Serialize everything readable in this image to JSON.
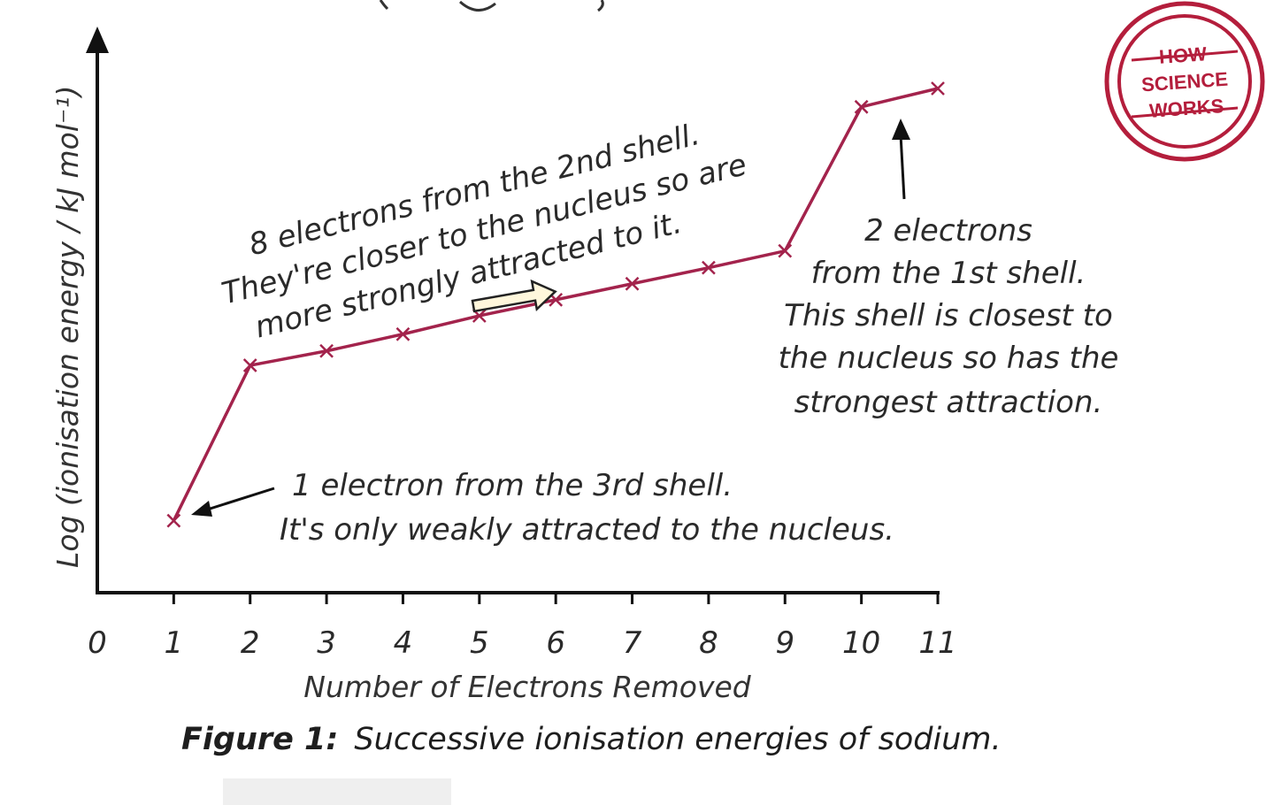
{
  "chart_data": {
    "type": "line",
    "x": [
      1,
      2,
      3,
      4,
      5,
      6,
      7,
      8,
      9,
      10,
      11
    ],
    "series": [
      {
        "values": [
          4.7,
          6.64,
          6.82,
          7.03,
          7.26,
          7.46,
          7.66,
          7.86,
          8.07,
          9.87,
          10.1
        ]
      }
    ],
    "xlabel": "Number of Electrons Removed",
    "ylabel": "Log (ionisation energy / kJ mol⁻¹)",
    "xticks": [
      "0",
      "1",
      "2",
      "3",
      "4",
      "5",
      "6",
      "7",
      "8",
      "9",
      "10",
      "11"
    ],
    "xlim": [
      0,
      11
    ],
    "ylim": [
      3.8,
      10.1
    ],
    "grid": false,
    "line_color": "#a3234c",
    "annotations": {
      "first_shell": [
        "1 electron from the 3rd shell.",
        "It's only weakly attracted to the nucleus."
      ],
      "second_shell": [
        "8 electrons from the 2nd shell.",
        "They're closer to the nucleus so are",
        "more strongly attracted to it."
      ],
      "third_shell": [
        "2 electrons",
        "from the 1st shell.",
        "This shell is closest to",
        "the nucleus so has the",
        "strongest attraction."
      ]
    }
  },
  "caption": {
    "number": "Figure 1:",
    "text": "Successive ionisation energies of sodium."
  },
  "badge": {
    "lines": [
      "HOW",
      "SCIENCE",
      "WORKS"
    ],
    "color": "#b41e3c"
  }
}
